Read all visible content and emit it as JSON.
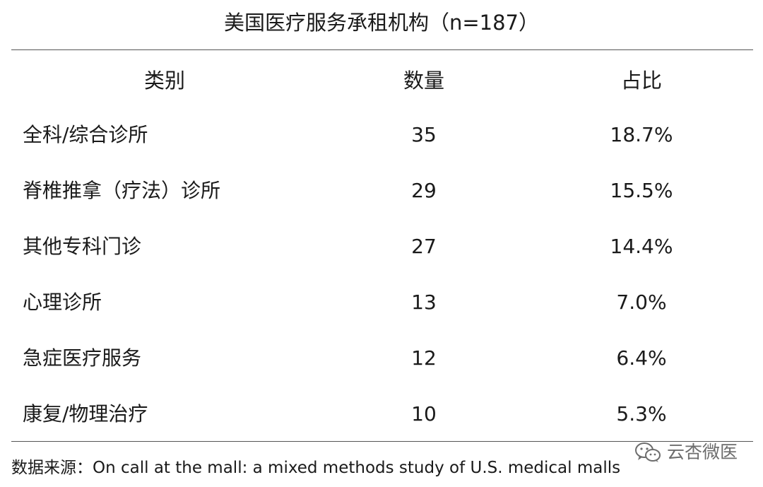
{
  "title": "美国医疗服务承租机构（n=187）",
  "headers": {
    "category": "类别",
    "count": "数量",
    "share": "占比"
  },
  "rows": [
    {
      "category": "全科/综合诊所",
      "count": "35",
      "share": "18.7%"
    },
    {
      "category": "脊椎推拿（疗法）诊所",
      "count": "29",
      "share": "15.5%"
    },
    {
      "category": "其他专科门诊",
      "count": "27",
      "share": "14.4%"
    },
    {
      "category": "心理诊所",
      "count": "13",
      "share": "7.0%"
    },
    {
      "category": "急症医疗服务",
      "count": "12",
      "share": "6.4%"
    },
    {
      "category": "康复/物理治疗",
      "count": "10",
      "share": "5.3%"
    }
  ],
  "source": "数据来源：On call at the mall: a mixed methods study of U.S. medical malls",
  "watermark": {
    "brand": "云杏微医",
    "icon": "wechat-icon"
  }
}
